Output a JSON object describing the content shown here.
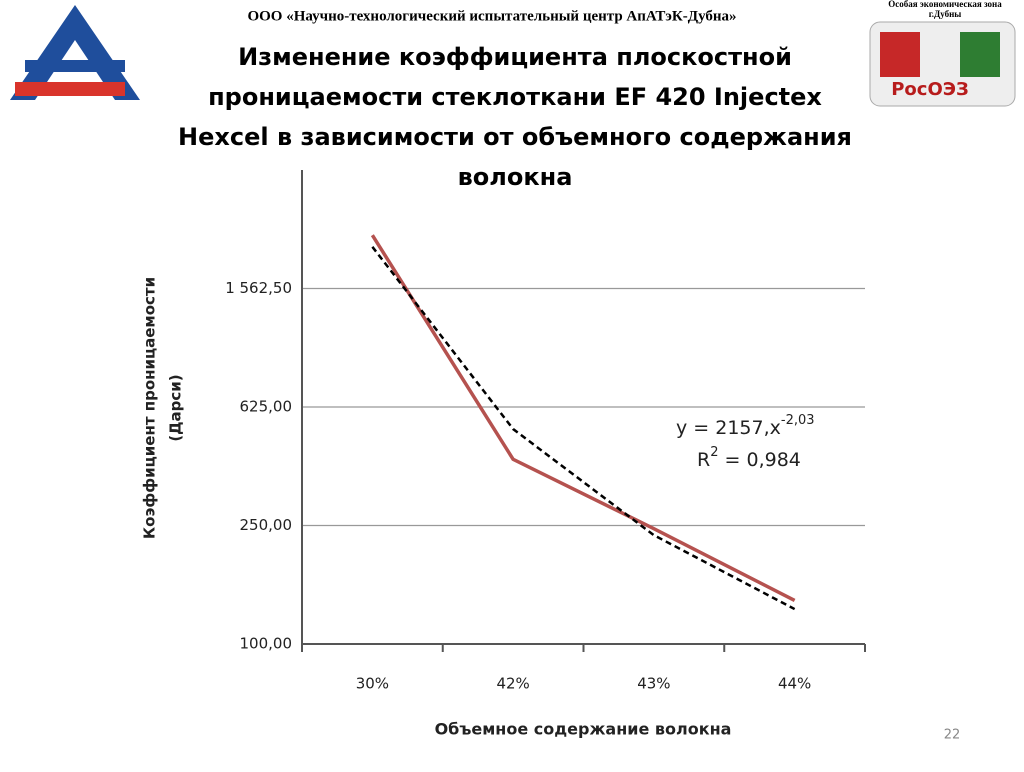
{
  "header": {
    "organization": "ООО «Научно-технологический испытательный центр АпАТэК-Дубна»",
    "logo_right_caption": [
      "Особая экономическая зона",
      "г.Дубны"
    ],
    "logo_right_name": "РосОЭЗ"
  },
  "chart_data": {
    "type": "line",
    "title": [
      "Изменение коэффициента плоскостной",
      "проницаемости стеклоткани EF 420 Injectex",
      "Hexcel в зависимости от объемного содержания",
      "волокна"
    ],
    "x_label": "Объемное содержание волокна",
    "y_label": [
      "Коэффициент проницаемости",
      "(Дарси)"
    ],
    "categories": [
      "30%",
      "42%",
      "43%",
      "44%"
    ],
    "log_scale_y": true,
    "grid": true,
    "ylim": [
      100,
      3906.25
    ],
    "yticks": [
      {
        "value": 100,
        "label": "100,00"
      },
      {
        "value": 250,
        "label": "250,00"
      },
      {
        "value": 625,
        "label": "625,00"
      },
      {
        "value": 1562.5,
        "label": "1 562,50"
      }
    ],
    "series": [
      {
        "color": "#b5524f",
        "dash": false,
        "values": [
          2360,
          417,
          244,
          140
        ]
      },
      {
        "color": "#000000",
        "dash": true,
        "values": [
          2157,
          527,
          232,
          131
        ]
      }
    ],
    "annotation": {
      "equation": "y = 2157,x",
      "exponent": "-2,03",
      "r": "R",
      "r_power": "2",
      "r_value": " = 0,984"
    }
  },
  "page_number": "22"
}
